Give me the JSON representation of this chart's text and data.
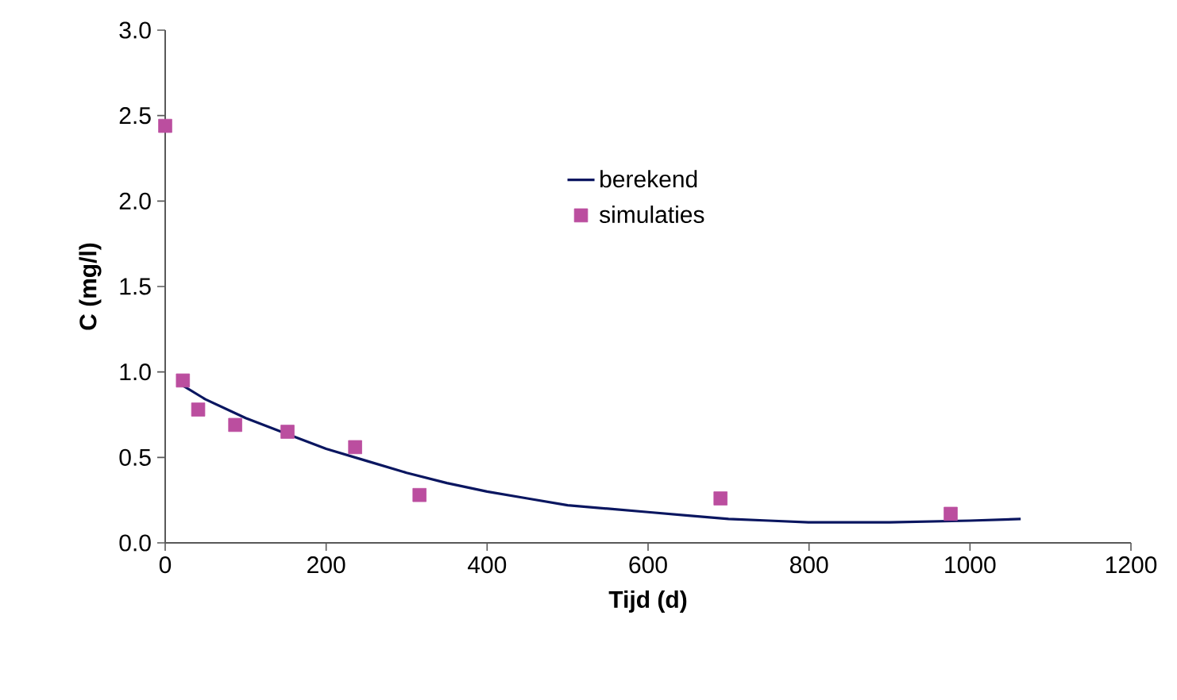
{
  "chart_data": {
    "type": "scatter",
    "xlabel": "Tijd (d)",
    "ylabel": "C (mg/l)",
    "xlim": [
      0,
      1200
    ],
    "ylim": [
      0,
      3.0
    ],
    "xticks": [
      0,
      200,
      400,
      600,
      800,
      1000,
      1200
    ],
    "yticks": [
      {
        "value": 0,
        "label": "0.0"
      },
      {
        "value": 0.5,
        "label": "0.5"
      },
      {
        "value": 1,
        "label": "1.0"
      },
      {
        "value": 1.5,
        "label": "1.5"
      },
      {
        "value": 2,
        "label": "2.0"
      },
      {
        "value": 2.5,
        "label": "2.5"
      },
      {
        "value": 3,
        "label": "3.0"
      }
    ],
    "legend": "right",
    "grid": false,
    "series": [
      {
        "name": "berekend",
        "type": "line",
        "color": "#0a1660",
        "marker": "none",
        "x": [
          22,
          50,
          100,
          150,
          200,
          250,
          300,
          350,
          400,
          450,
          500,
          550,
          600,
          650,
          700,
          750,
          800,
          900,
          1000,
          1063
        ],
        "values": [
          0.92,
          0.84,
          0.73,
          0.64,
          0.55,
          0.48,
          0.41,
          0.35,
          0.3,
          0.26,
          0.22,
          0.2,
          0.18,
          0.16,
          0.14,
          0.13,
          0.12,
          0.12,
          0.13,
          0.14
        ]
      },
      {
        "name": "simulaties",
        "color": "#bb4e9f",
        "marker": "square",
        "x": [
          0,
          22,
          41,
          87,
          152,
          236,
          316,
          690,
          976
        ],
        "values": [
          2.44,
          0.95,
          0.78,
          0.69,
          0.65,
          0.56,
          0.28,
          0.26,
          0.17
        ]
      }
    ]
  }
}
